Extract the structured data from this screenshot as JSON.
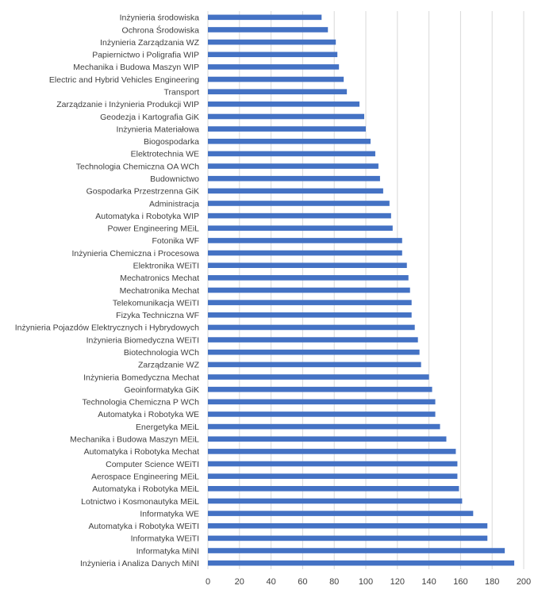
{
  "chart_data": {
    "type": "bar",
    "orientation": "horizontal",
    "color": "#4472c4",
    "grid": true,
    "xlim": [
      0,
      200
    ],
    "xticks": [
      0,
      20,
      40,
      60,
      80,
      100,
      120,
      140,
      160,
      180,
      200
    ],
    "categories": [
      "Inżynieria środowiska",
      "Ochrona Środowiska",
      "Inżynieria Zarządzania WZ",
      "Papiernictwo i Poligrafia WIP",
      "Mechanika i Budowa Maszyn WIP",
      "Electric and Hybrid Vehicles Engineering",
      "Transport",
      "Zarządzanie i Inżynieria Produkcji WIP",
      "Geodezja i Kartografia GiK",
      "Inżynieria Materiałowa",
      "Biogospodarka",
      "Elektrotechnia WE",
      "Technologia Chemiczna OA WCh",
      "Budownictwo",
      "Gospodarka Przestrzenna GiK",
      "Administracja",
      "Automatyka i Robotyka WIP",
      "Power Engineering MEiL",
      "Fotonika WF",
      "Inżynieria Chemiczna i Procesowa",
      "Elektronika WEiTI",
      "Mechatronics Mechat",
      "Mechatronika Mechat",
      "Telekomunikacja WEiTI",
      "Fizyka Techniczna WF",
      "Inżynieria Pojazdów Elektrycznych i Hybrydowych",
      "Inżynieria Biomedyczna WEiTI",
      "Biotechnologia WCh",
      "Zarządzanie WZ",
      "Inżynieria Bomedyczna Mechat",
      "Geoinformatyka GiK",
      "Technologia Chemiczna P WCh",
      "Automatyka i Robotyka WE",
      "Energetyka MEiL",
      "Mechanika i Budowa Maszyn MEiL",
      "Automatyka i Robotyka Mechat",
      "Computer Science WEiTI",
      "Aerospace Engineering MEiL",
      "Automatyka i Robotyka MEiL",
      "Lotnictwo i Kosmonautyka MEiL",
      "Informatyka WE",
      "Automatyka i Robotyka WEiTI",
      "Informatyka WEiTI",
      "Informatyka MiNI",
      "Inżynieria i Analiza Danych MiNI"
    ],
    "values": [
      72,
      76,
      81,
      82,
      83,
      86,
      88,
      96,
      99,
      100,
      103,
      106,
      108,
      109,
      111,
      115,
      116,
      117,
      123,
      123,
      126,
      127,
      128,
      129,
      129,
      131,
      133,
      134,
      135,
      140,
      142,
      144,
      144,
      147,
      151,
      157,
      158,
      158,
      159,
      161,
      168,
      177,
      177,
      188,
      194
    ]
  }
}
